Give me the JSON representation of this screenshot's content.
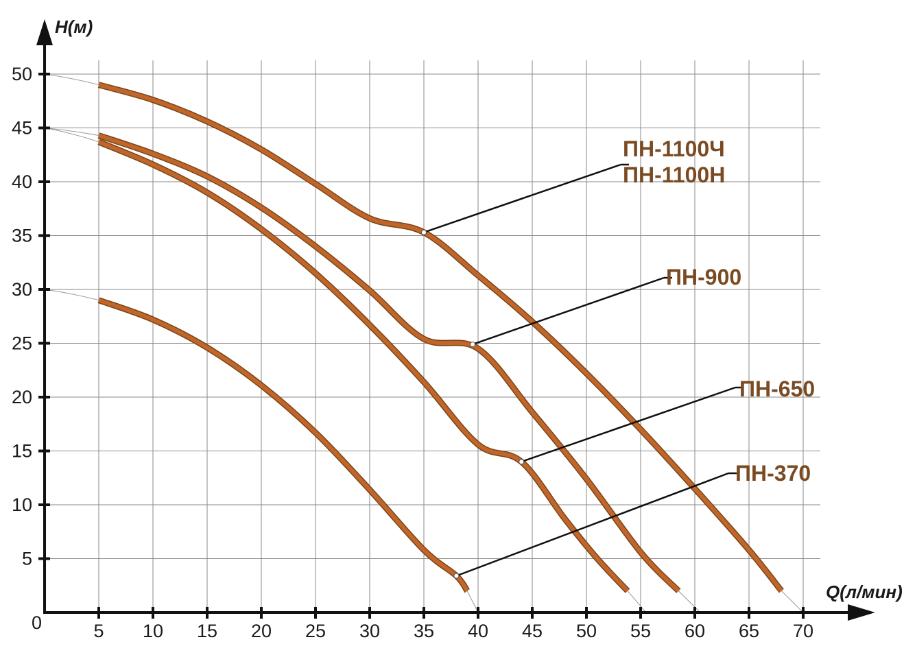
{
  "chart_data": {
    "type": "line",
    "title": "",
    "xlabel": "Q(л/мин)",
    "ylabel": "H(м)",
    "origin_label": "0",
    "xlim": [
      0,
      70
    ],
    "ylim": [
      0,
      50
    ],
    "x_ticks": [
      "5",
      "10",
      "15",
      "20",
      "25",
      "30",
      "35",
      "40",
      "45",
      "50",
      "55",
      "60",
      "65",
      "70"
    ],
    "y_ticks": [
      "5",
      "10",
      "15",
      "20",
      "25",
      "30",
      "35",
      "40",
      "45",
      "50"
    ],
    "grid": true,
    "colors": {
      "curve": "#c0662a",
      "curve_edge": "#7a4519",
      "callout_text": "#7a4a22",
      "axis": "#111111",
      "grid": "#8a8a8a"
    },
    "series": [
      {
        "labels": [
          "ПН-1100Ч",
          "ПН-1100Н"
        ],
        "shutoff_head": 50,
        "shutoff_flow": 70,
        "x": [
          5,
          10,
          15,
          20,
          25,
          30,
          35,
          40,
          45,
          50,
          55,
          60,
          65,
          68
        ],
        "y": [
          49,
          47.6,
          45.6,
          43.0,
          39.8,
          36.6,
          35.3,
          31.3,
          27.0,
          22.2,
          17.0,
          11.5,
          5.8,
          2
        ],
        "callout_point": [
          35,
          35.3
        ]
      },
      {
        "labels": [
          "ПН-900"
        ],
        "shutoff_head": 45,
        "shutoff_flow": 60.5,
        "x": [
          5,
          10,
          15,
          20,
          25,
          30,
          35,
          40,
          45,
          50,
          55,
          58.5
        ],
        "y": [
          44.3,
          42.6,
          40.5,
          37.6,
          34.0,
          29.9,
          25.4,
          24.5,
          18.6,
          12.4,
          5.6,
          2
        ],
        "callout_point": [
          39.5,
          24.9
        ]
      },
      {
        "labels": [
          "ПН-650"
        ],
        "shutoff_head": 45,
        "shutoff_flow": 55.5,
        "x": [
          5,
          10,
          15,
          20,
          25,
          30,
          35,
          40,
          44,
          48,
          51,
          53.8
        ],
        "y": [
          43.7,
          41.6,
          39.0,
          35.6,
          31.5,
          26.7,
          21.4,
          15.6,
          14.0,
          8.7,
          5.0,
          2
        ],
        "callout_point": [
          44,
          14.0
        ]
      },
      {
        "labels": [
          "ПН-370"
        ],
        "shutoff_head": 30,
        "shutoff_flow": 40,
        "x": [
          5,
          10,
          15,
          20,
          25,
          30,
          35,
          38,
          39
        ],
        "y": [
          29,
          27.2,
          24.6,
          21.1,
          16.7,
          11.4,
          5.8,
          3.4,
          2
        ],
        "callout_point": [
          38,
          3.4
        ]
      }
    ],
    "callouts": [
      {
        "series": 0,
        "lines": [
          "ПН-1100Ч",
          "ПН-1100Н"
        ]
      },
      {
        "series": 1,
        "lines": [
          "ПН-900"
        ]
      },
      {
        "series": 2,
        "lines": [
          "ПН-650"
        ]
      },
      {
        "series": 3,
        "lines": [
          "ПН-370"
        ]
      }
    ]
  }
}
